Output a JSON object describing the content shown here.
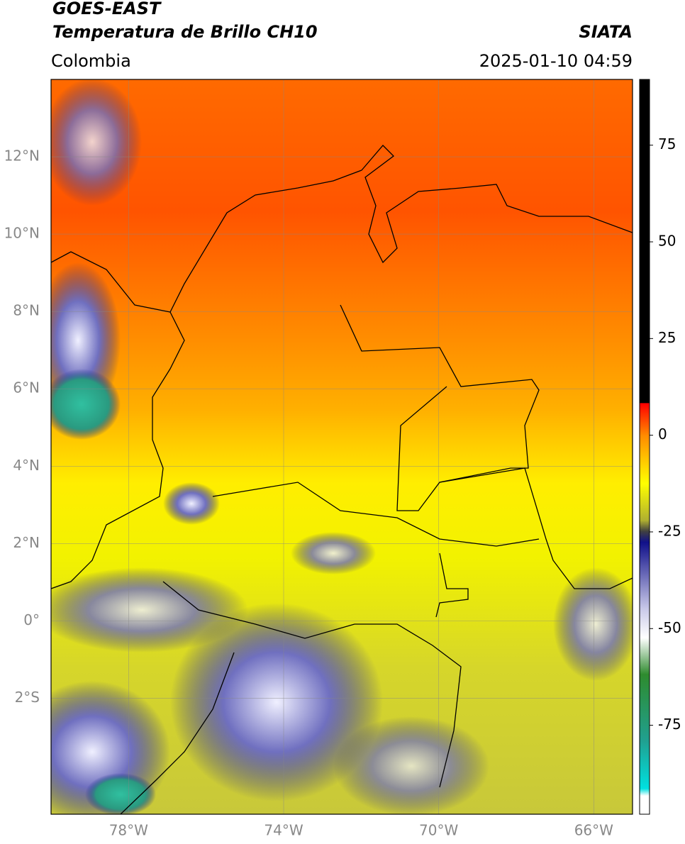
{
  "header": {
    "title_line1": "GOES-EAST",
    "title_line2": "Temperatura de Brillo CH10",
    "agency": "SIATA",
    "region": "Colombia",
    "timestamp": "2025-01-10 04:59"
  },
  "map": {
    "lon_range": [
      -80,
      -65
    ],
    "lat_range": [
      -5,
      14
    ],
    "lon_ticks": [
      {
        "value": -78,
        "label": "78°W"
      },
      {
        "value": -74,
        "label": "74°W"
      },
      {
        "value": -70,
        "label": "70°W"
      },
      {
        "value": -66,
        "label": "66°W"
      }
    ],
    "lat_ticks": [
      {
        "value": 12,
        "label": "12°N"
      },
      {
        "value": 10,
        "label": "10°N"
      },
      {
        "value": 8,
        "label": "8°N"
      },
      {
        "value": 6,
        "label": "6°N"
      },
      {
        "value": 4,
        "label": "4°N"
      },
      {
        "value": 2,
        "label": "2°N"
      },
      {
        "value": 0,
        "label": "0°"
      },
      {
        "value": -2,
        "label": "2°S"
      }
    ]
  },
  "colorbar": {
    "lim": [
      -98,
      92
    ],
    "ticks": [
      75,
      50,
      25,
      0,
      -25,
      -50,
      -75
    ]
  }
}
